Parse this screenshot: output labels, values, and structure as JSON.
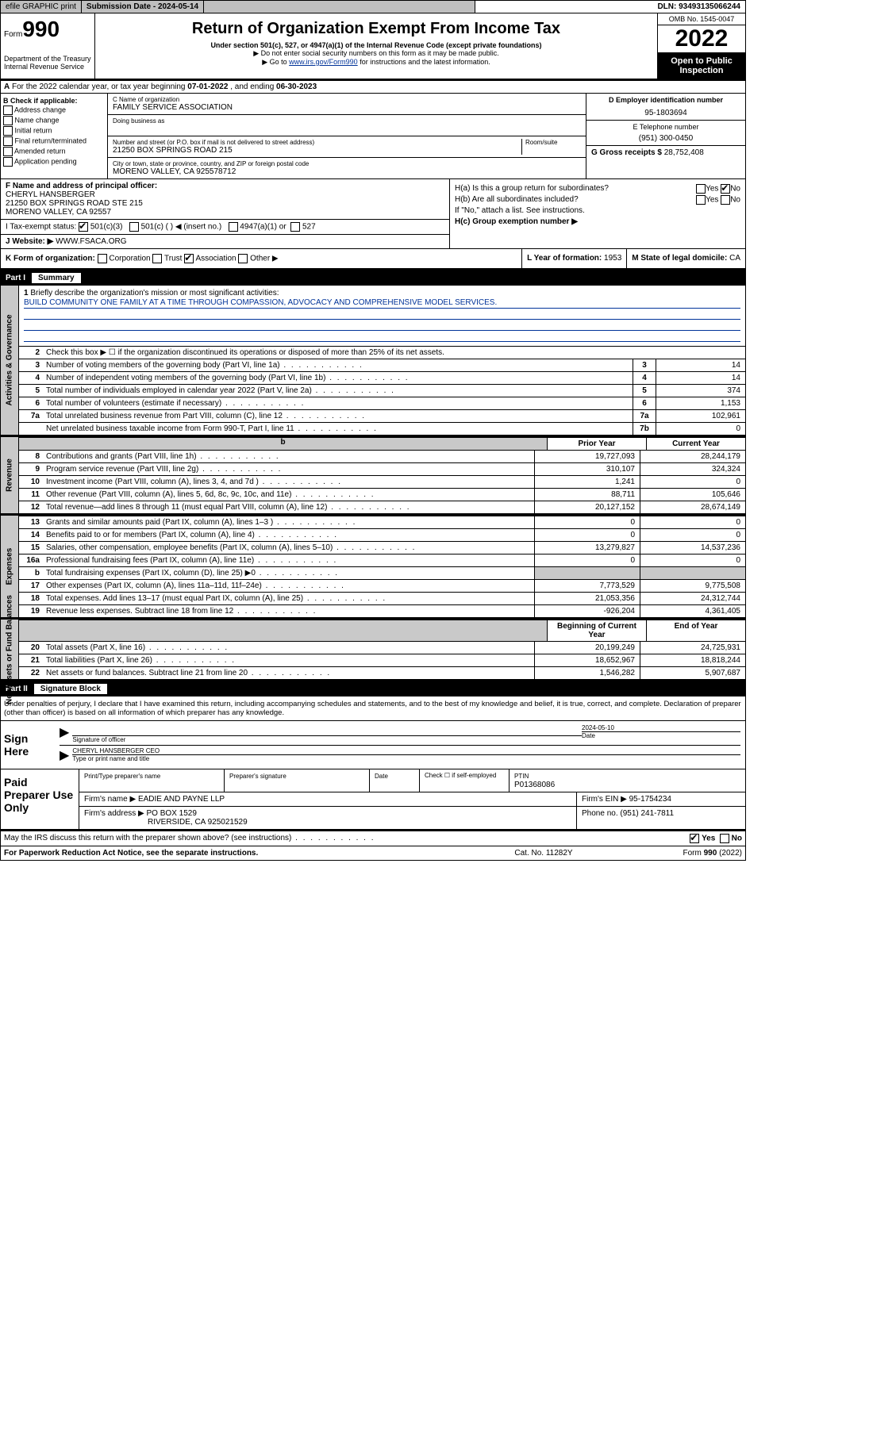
{
  "topbar": {
    "efile": "efile GRAPHIC print",
    "subdate_label": "Submission Date - ",
    "subdate": "2024-05-14",
    "dln_label": "DLN: ",
    "dln": "93493135066244"
  },
  "header": {
    "form_label": "Form",
    "form_number": "990",
    "dept": "Department of the Treasury\nInternal Revenue Service",
    "title": "Return of Organization Exempt From Income Tax",
    "sub1": "Under section 501(c), 527, or 4947(a)(1) of the Internal Revenue Code (except private foundations)",
    "arrow1": "▶ Do not enter social security numbers on this form as it may be made public.",
    "arrow2_pre": "▶ Go to ",
    "arrow2_link": "www.irs.gov/Form990",
    "arrow2_post": " for instructions and the latest information.",
    "omb": "OMB No. 1545-0047",
    "year": "2022",
    "open_inspect": "Open to Public Inspection"
  },
  "row_a": {
    "text_pre": "For the 2022 calendar year, or tax year beginning ",
    "begin": "07-01-2022",
    "mid": " , and ending ",
    "end": "06-30-2023"
  },
  "b": {
    "label": "B Check if applicable:",
    "items": [
      "Address change",
      "Name change",
      "Initial return",
      "Final return/terminated",
      "Amended return",
      "Application pending"
    ]
  },
  "c": {
    "name_label": "C Name of organization",
    "name": "FAMILY SERVICE ASSOCIATION",
    "dba_label": "Doing business as",
    "addr_label": "Number and street (or P.O. box if mail is not delivered to street address)",
    "room_label": "Room/suite",
    "addr": "21250 BOX SPRINGS ROAD 215",
    "city_label": "City or town, state or province, country, and ZIP or foreign postal code",
    "city": "MORENO VALLEY, CA  925578712"
  },
  "d": {
    "label": "D Employer identification number",
    "value": "95-1803694"
  },
  "e": {
    "label": "E Telephone number",
    "value": "(951) 300-0450"
  },
  "g": {
    "label": "G Gross receipts $ ",
    "value": "28,752,408"
  },
  "f": {
    "label": "F Name and address of principal officer:",
    "name": "CHERYL HANSBERGER",
    "addr1": "21250 BOX SPRINGS ROAD STE 215",
    "addr2": "MORENO VALLEY, CA  92557"
  },
  "h": {
    "a_label": "H(a)  Is this a group return for subordinates?",
    "a_yes": "Yes",
    "a_no": "No",
    "b_label": "H(b)  Are all subordinates included?",
    "b_note": "If \"No,\" attach a list. See instructions.",
    "c_label": "H(c)  Group exemption number ▶"
  },
  "i": {
    "label": "I   Tax-exempt status:",
    "opt1": "501(c)(3)",
    "opt2": "501(c) (   ) ◀ (insert no.)",
    "opt3": "4947(a)(1) or",
    "opt4": "527"
  },
  "j": {
    "label": "J   Website: ▶ ",
    "value": "WWW.FSACA.ORG"
  },
  "k": {
    "label": "K Form of organization:",
    "opts": [
      "Corporation",
      "Trust",
      "Association",
      "Other ▶"
    ],
    "checked_idx": 2,
    "l_label": "L Year of formation: ",
    "l_value": "1953",
    "m_label": "M State of legal domicile: ",
    "m_value": "CA"
  },
  "part1": {
    "label": "Part I",
    "title": "Summary"
  },
  "mission": {
    "n": "1",
    "label": "Briefly describe the organization's mission or most significant activities:",
    "text": "BUILD COMMUNITY ONE FAMILY AT A TIME THROUGH COMPASSION, ADVOCACY AND COMPREHENSIVE MODEL SERVICES."
  },
  "gov_rows": [
    {
      "n": "2",
      "txt": "Check this box ▶ ☐  if the organization discontinued its operations or disposed of more than 25% of its net assets.",
      "box": "",
      "val": "",
      "noboxes": true
    },
    {
      "n": "3",
      "txt": "Number of voting members of the governing body (Part VI, line 1a)",
      "box": "3",
      "val": "14"
    },
    {
      "n": "4",
      "txt": "Number of independent voting members of the governing body (Part VI, line 1b)",
      "box": "4",
      "val": "14"
    },
    {
      "n": "5",
      "txt": "Total number of individuals employed in calendar year 2022 (Part V, line 2a)",
      "box": "5",
      "val": "374"
    },
    {
      "n": "6",
      "txt": "Total number of volunteers (estimate if necessary)",
      "box": "6",
      "val": "1,153"
    },
    {
      "n": "7a",
      "txt": "Total unrelated business revenue from Part VIII, column (C), line 12",
      "box": "7a",
      "val": "102,961"
    },
    {
      "n": "",
      "txt": "Net unrelated business taxable income from Form 990-T, Part I, line 11",
      "box": "7b",
      "val": "0"
    }
  ],
  "py_cy_header": {
    "py": "Prior Year",
    "cy": "Current Year"
  },
  "revenue_rows": [
    {
      "n": "8",
      "txt": "Contributions and grants (Part VIII, line 1h)",
      "py": "19,727,093",
      "cy": "28,244,179"
    },
    {
      "n": "9",
      "txt": "Program service revenue (Part VIII, line 2g)",
      "py": "310,107",
      "cy": "324,324"
    },
    {
      "n": "10",
      "txt": "Investment income (Part VIII, column (A), lines 3, 4, and 7d )",
      "py": "1,241",
      "cy": "0"
    },
    {
      "n": "11",
      "txt": "Other revenue (Part VIII, column (A), lines 5, 6d, 8c, 9c, 10c, and 11e)",
      "py": "88,711",
      "cy": "105,646"
    },
    {
      "n": "12",
      "txt": "Total revenue—add lines 8 through 11 (must equal Part VIII, column (A), line 12)",
      "py": "20,127,152",
      "cy": "28,674,149"
    }
  ],
  "expense_rows": [
    {
      "n": "13",
      "txt": "Grants and similar amounts paid (Part IX, column (A), lines 1–3 )",
      "py": "0",
      "cy": "0"
    },
    {
      "n": "14",
      "txt": "Benefits paid to or for members (Part IX, column (A), line 4)",
      "py": "0",
      "cy": "0"
    },
    {
      "n": "15",
      "txt": "Salaries, other compensation, employee benefits (Part IX, column (A), lines 5–10)",
      "py": "13,279,827",
      "cy": "14,537,236"
    },
    {
      "n": "16a",
      "txt": "Professional fundraising fees (Part IX, column (A), line 11e)",
      "py": "0",
      "cy": "0"
    },
    {
      "n": "b",
      "txt": "Total fundraising expenses (Part IX, column (D), line 25) ▶0",
      "py": "",
      "cy": "",
      "shade": true
    },
    {
      "n": "17",
      "txt": "Other expenses (Part IX, column (A), lines 11a–11d, 11f–24e)",
      "py": "7,773,529",
      "cy": "9,775,508"
    },
    {
      "n": "18",
      "txt": "Total expenses. Add lines 13–17 (must equal Part IX, column (A), line 25)",
      "py": "21,053,356",
      "cy": "24,312,744"
    },
    {
      "n": "19",
      "txt": "Revenue less expenses. Subtract line 18 from line 12",
      "py": "-926,204",
      "cy": "4,361,405"
    }
  ],
  "na_header": {
    "py": "Beginning of Current Year",
    "cy": "End of Year"
  },
  "na_rows": [
    {
      "n": "20",
      "txt": "Total assets (Part X, line 16)",
      "py": "20,199,249",
      "cy": "24,725,931"
    },
    {
      "n": "21",
      "txt": "Total liabilities (Part X, line 26)",
      "py": "18,652,967",
      "cy": "18,818,244"
    },
    {
      "n": "22",
      "txt": "Net assets or fund balances. Subtract line 21 from line 20",
      "py": "1,546,282",
      "cy": "5,907,687"
    }
  ],
  "vlabels": {
    "gov": "Activities & Governance",
    "rev": "Revenue",
    "exp": "Expenses",
    "na": "Net Assets or Fund Balances"
  },
  "part2": {
    "label": "Part II",
    "title": "Signature Block"
  },
  "penalties": "Under penalties of perjury, I declare that I have examined this return, including accompanying schedules and statements, and to the best of my knowledge and belief, it is true, correct, and complete. Declaration of preparer (other than officer) is based on all information of which preparer has any knowledge.",
  "sign": {
    "here": "Sign Here",
    "sig_label": "Signature of officer",
    "date_label": "Date",
    "date_value": "2024-05-10",
    "name": "CHERYL HANSBERGER CEO",
    "name_label": "Type or print name and title"
  },
  "paidprep": {
    "label": "Paid Preparer Use Only",
    "r1": {
      "c1l": "Print/Type preparer's name",
      "c2l": "Preparer's signature",
      "c3l": "Date",
      "c4": "Check ☐ if self-employed",
      "c5l": "PTIN",
      "c5v": "P01368086"
    },
    "r2": {
      "c1l": "Firm's name    ▶ ",
      "c1v": "EADIE AND PAYNE LLP",
      "c2l": "Firm's EIN ▶ ",
      "c2v": "95-1754234"
    },
    "r3": {
      "c1l": "Firm's address ▶ ",
      "c1v": "PO BOX 1529",
      "c1v2": "RIVERSIDE, CA  925021529",
      "c2l": "Phone no. ",
      "c2v": "(951) 241-7811"
    }
  },
  "discuss": {
    "q": "May the IRS discuss this return with the preparer shown above? (see instructions)",
    "yes": "Yes",
    "no": "No"
  },
  "footer": {
    "left": "For Paperwork Reduction Act Notice, see the separate instructions.",
    "mid": "Cat. No. 11282Y",
    "right": "Form 990 (2022)"
  }
}
